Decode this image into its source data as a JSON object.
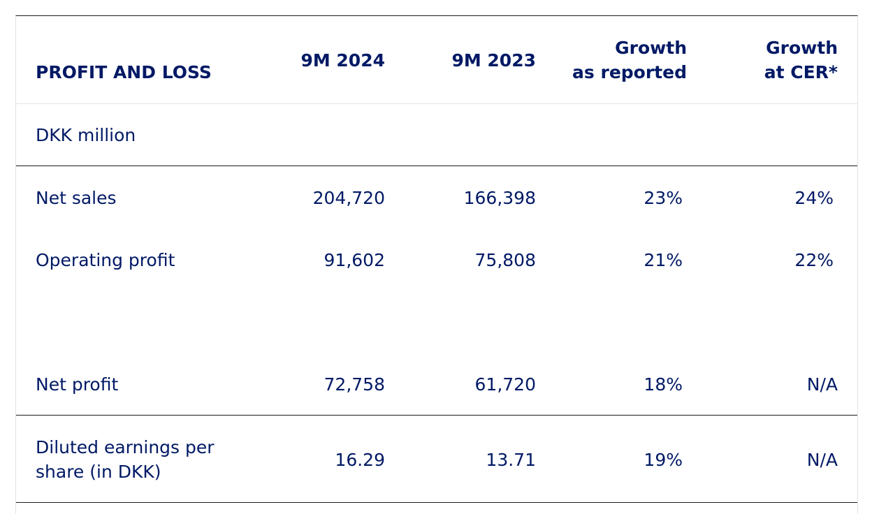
{
  "table": {
    "title": "PROFIT AND LOSS",
    "columns": [
      "9M 2024",
      "9M 2023",
      "Growth\nas reported",
      "Growth\nat CER*"
    ],
    "col3_line1": "Growth",
    "col3_line2": "as reported",
    "col4_line1": "Growth",
    "col4_line2": "at CER*",
    "unit": "DKK million",
    "rows": [
      {
        "label": "Net sales",
        "v2024": "204,720",
        "v2023": "166,398",
        "growth_reported": "23%",
        "growth_cer": "24%"
      },
      {
        "label": "Operating profit",
        "v2024": "91,602",
        "v2023": "75,808",
        "growth_reported": "21%",
        "growth_cer": "22%"
      },
      {
        "label": "Net profit",
        "v2024": "72,758",
        "v2023": "61,720",
        "growth_reported": "18%",
        "growth_cer": "N/A"
      },
      {
        "label_line1": "Diluted earnings per",
        "label_line2": "share (in DKK)",
        "v2024": "16.29",
        "v2023": "13.71",
        "growth_reported": "19%",
        "growth_cer": "N/A"
      }
    ]
  }
}
